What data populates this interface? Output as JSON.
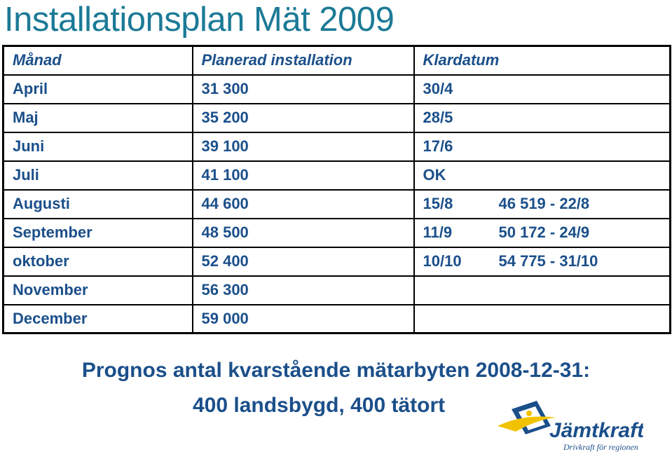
{
  "title": "Installationsplan Mät 2009",
  "table": {
    "headers": [
      "Månad",
      "Planerad installation",
      "Klardatum"
    ],
    "rows": [
      {
        "month": "April",
        "planned": "31 300",
        "klar": "30/4",
        "extra": ""
      },
      {
        "month": "Maj",
        "planned": "35 200",
        "klar": "28/5",
        "extra": ""
      },
      {
        "month": "Juni",
        "planned": "39 100",
        "klar": "17/6",
        "extra": ""
      },
      {
        "month": "Juli",
        "planned": "41 100",
        "klar": "OK",
        "extra": ""
      },
      {
        "month": "Augusti",
        "planned": "44 600",
        "klar": "15/8",
        "extra": "46 519 - 22/8"
      },
      {
        "month": "September",
        "planned": "48 500",
        "klar": "11/9",
        "extra": "50 172 - 24/9"
      },
      {
        "month": "oktober",
        "planned": "52 400",
        "klar": "10/10",
        "extra": "54 775 - 31/10"
      },
      {
        "month": "November",
        "planned": "56 300",
        "klar": "",
        "extra": ""
      },
      {
        "month": "December",
        "planned": "59 000",
        "klar": "",
        "extra": ""
      }
    ]
  },
  "prognos": {
    "line1": "Prognos antal kvarstående mätarbyten 2008-12-31:",
    "line2": "400 landsbygd, 400 tätort"
  },
  "logo": {
    "name": "Jämtkraft",
    "tagline": "Drivkraft för regionen",
    "colors": {
      "blue": "#1b4f8a",
      "yellow": "#f2c200"
    }
  },
  "colors": {
    "title": "#1b7a96",
    "text": "#1b4f8a"
  }
}
